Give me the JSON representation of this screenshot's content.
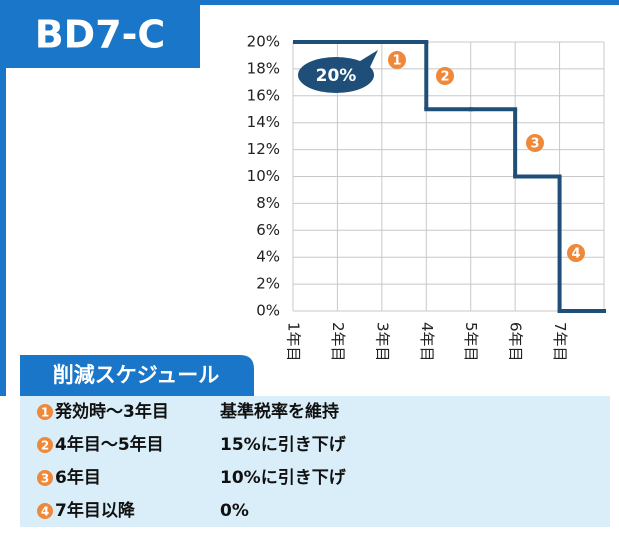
{
  "chart_data": {
    "type": "step",
    "title": "BD7-C",
    "categories": [
      "1年目",
      "2年目",
      "3年目",
      "4年目",
      "5年目",
      "6年目",
      "7年目"
    ],
    "series": [
      {
        "color": "#1f4e79",
        "values": [
          20,
          20,
          20,
          15,
          15,
          10,
          0
        ]
      }
    ],
    "ylim": [
      0,
      20
    ],
    "yticks": [
      {
        "value": 0,
        "label": "0%"
      },
      {
        "value": 2,
        "label": "2%"
      },
      {
        "value": 4,
        "label": "4%"
      },
      {
        "value": 6,
        "label": "6%"
      },
      {
        "value": 8,
        "label": "8%"
      },
      {
        "value": 10,
        "label": "10%"
      },
      {
        "value": 12,
        "label": "12%"
      },
      {
        "value": 14,
        "label": "14%"
      },
      {
        "value": 16,
        "label": "16%"
      },
      {
        "value": 18,
        "label": "18%"
      },
      {
        "value": 20,
        "label": "20%"
      }
    ],
    "grid": true,
    "callout": "20%",
    "markers": [
      "1",
      "2",
      "3",
      "4"
    ]
  },
  "schedule": {
    "title": "削減スケジュール",
    "rows": [
      {
        "num": "1",
        "term": "発効時～3年目",
        "desc": "基準税率を維持"
      },
      {
        "num": "2",
        "term": "4年目～5年目",
        "desc": "15%に引き下げ"
      },
      {
        "num": "3",
        "term": "6年目",
        "desc": "10%に引き下げ"
      },
      {
        "num": "4",
        "term": "7年目以降",
        "desc": "0%"
      }
    ]
  }
}
